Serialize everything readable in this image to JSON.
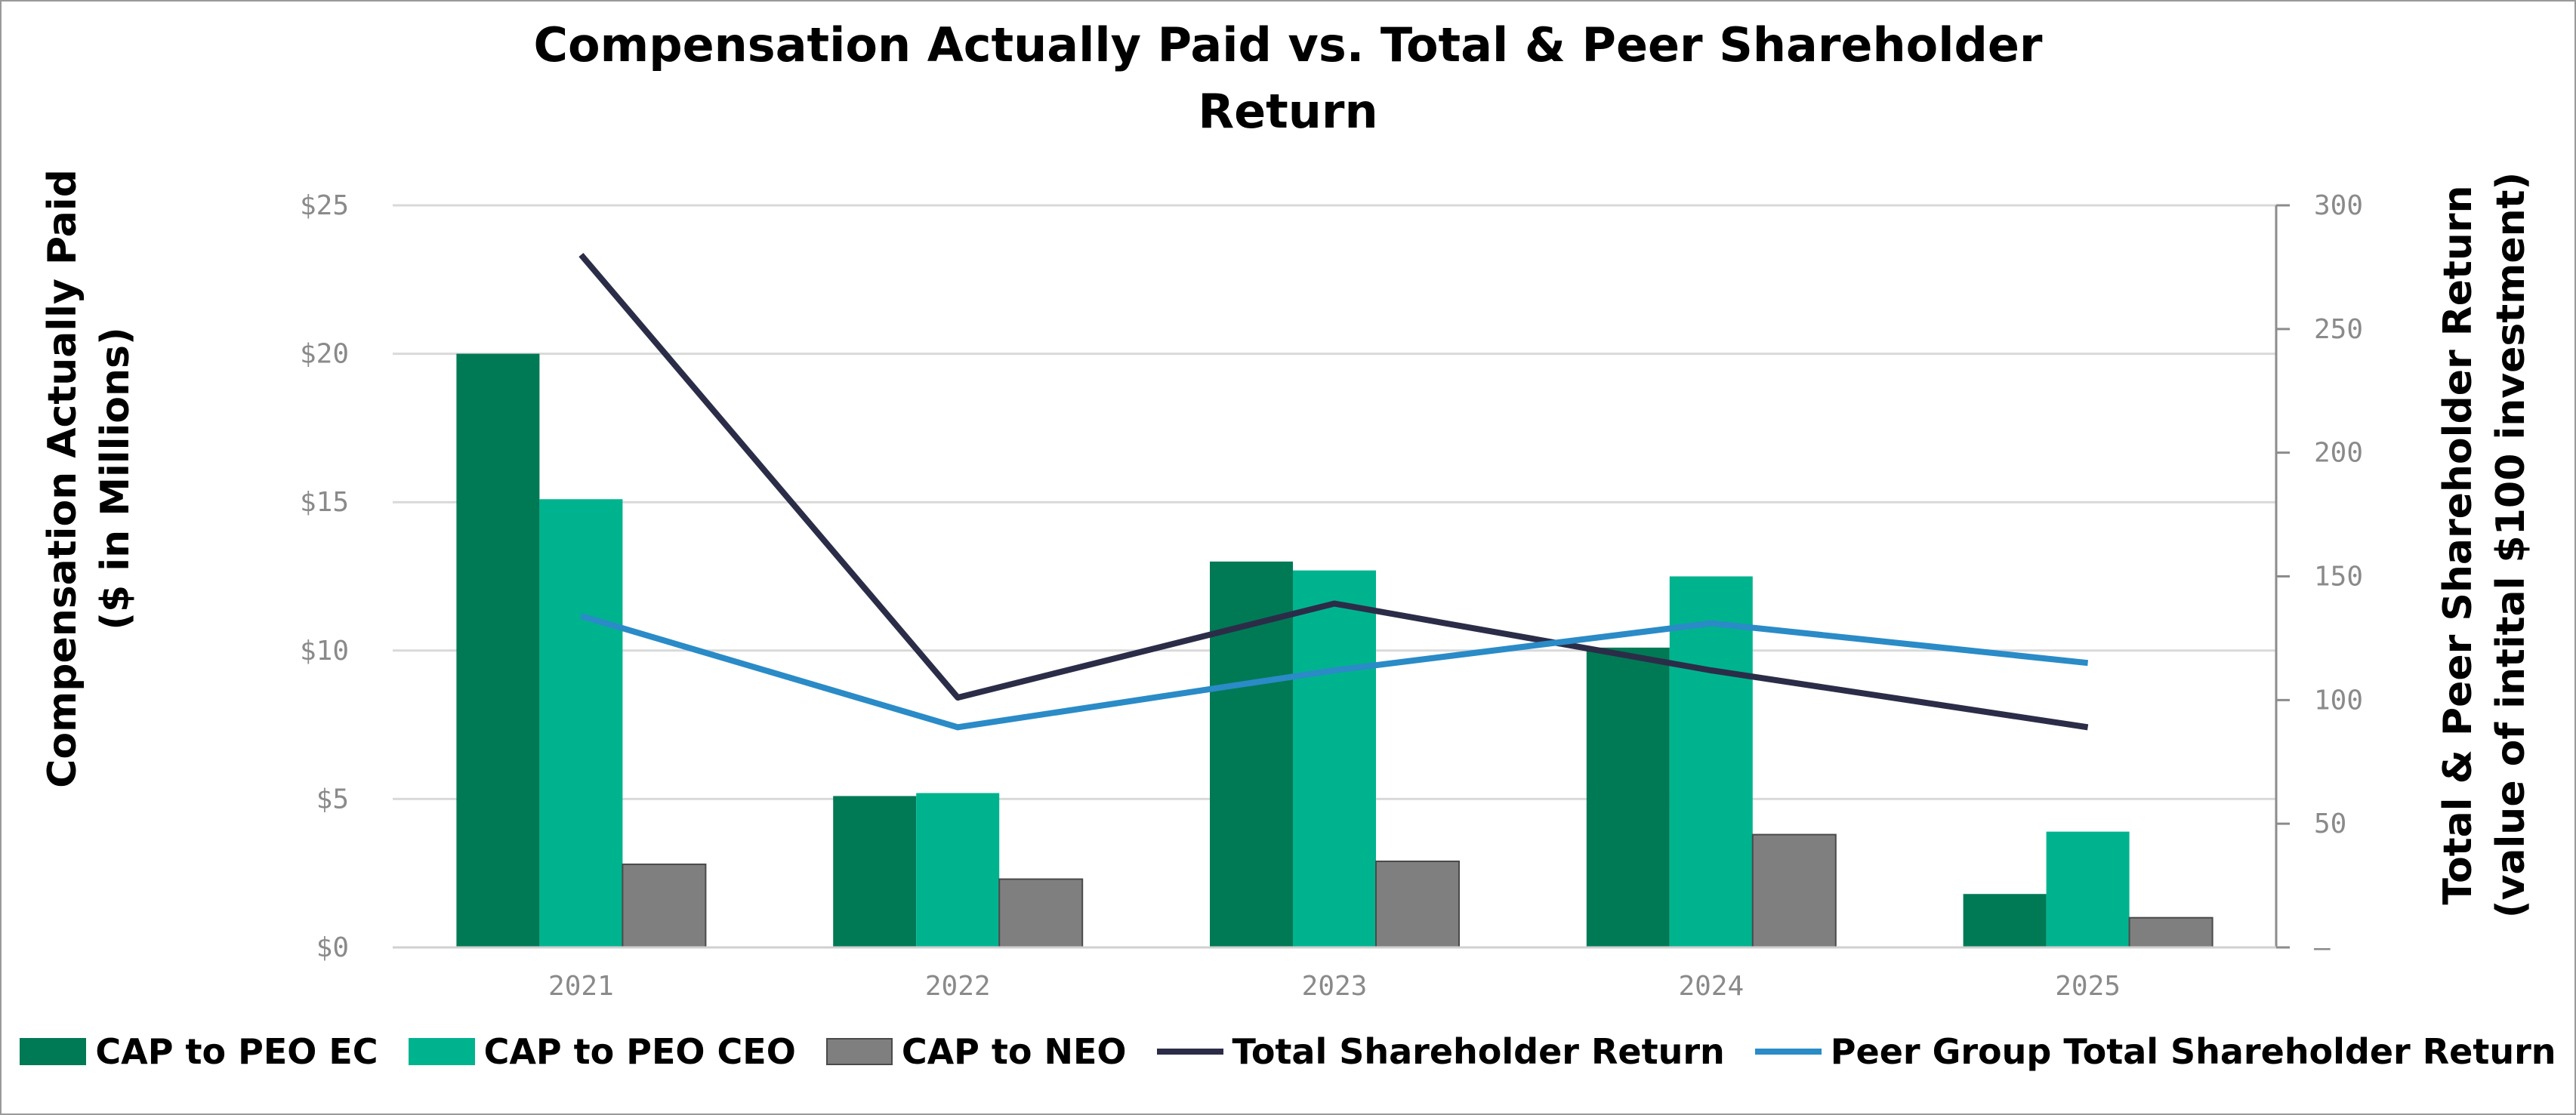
{
  "title_lines": [
    "Compensation Actually Paid vs. Total & Peer Shareholder",
    "Return"
  ],
  "ylabel_left": [
    "Compensation Actually Paid",
    "($ in Millions)"
  ],
  "ylabel_right": [
    "Total & Peer Shareholder Return",
    "(value of intital $100 investment)"
  ],
  "legend": [
    {
      "label": "CAP to PEO EC",
      "kind": "bar",
      "color": "#007A55"
    },
    {
      "label": "CAP to PEO CEO",
      "kind": "bar",
      "color": "#00B38F"
    },
    {
      "label": "CAP to NEO",
      "kind": "bar",
      "color": "#7F7F7F"
    },
    {
      "label": "Total Shareholder Return",
      "kind": "line",
      "color": "#2B2D48"
    },
    {
      "label": "Peer Group Total Shareholder Return",
      "kind": "line",
      "color": "#2A8BC7"
    }
  ],
  "chart_data": {
    "type": "bar",
    "title": "Compensation Actually Paid vs. Total & Peer Shareholder Return",
    "categories": [
      "2021",
      "2022",
      "2023",
      "2024",
      "2025"
    ],
    "xlabel": "",
    "ylabel": "Compensation Actually Paid ($ in Millions)",
    "ylabel_right": "Total & Peer Shareholder Return (value of intital $100 investment)",
    "ylim": [
      0,
      25
    ],
    "ylim_right": [
      0,
      300
    ],
    "left_ticks": [
      "$0",
      "$5",
      "$10",
      "$15",
      "$20",
      "$25"
    ],
    "left_tick_values": [
      0,
      5,
      10,
      15,
      20,
      25
    ],
    "right_ticks": [
      "–",
      "50",
      "100",
      "150",
      "200",
      "250",
      "300"
    ],
    "right_tick_values": [
      0,
      50,
      100,
      150,
      200,
      250,
      300
    ],
    "grid": true,
    "legend_position": "bottom",
    "series": [
      {
        "name": "CAP to PEO EC",
        "type": "bar",
        "axis": "left",
        "color": "#007A55",
        "values": [
          20.0,
          5.1,
          13.0,
          10.1,
          1.8
        ]
      },
      {
        "name": "CAP to PEO CEO",
        "type": "bar",
        "axis": "left",
        "color": "#00B38F",
        "values": [
          15.1,
          5.2,
          12.7,
          12.5,
          3.9
        ]
      },
      {
        "name": "CAP to NEO",
        "type": "bar",
        "axis": "left",
        "color": "#7F7F7F",
        "values": [
          2.8,
          2.3,
          2.9,
          3.8,
          1.0
        ]
      },
      {
        "name": "Total Shareholder Return",
        "type": "line",
        "axis": "right",
        "color": "#2B2D48",
        "values": [
          280,
          101,
          139,
          112,
          89
        ]
      },
      {
        "name": "Peer Group Total Shareholder Return",
        "type": "line",
        "axis": "right",
        "color": "#2A8BC7",
        "values": [
          134,
          89,
          112,
          131,
          115
        ]
      }
    ]
  }
}
